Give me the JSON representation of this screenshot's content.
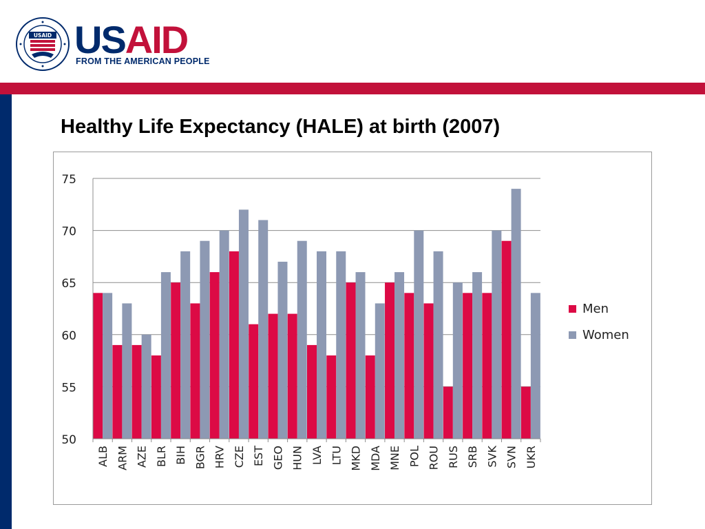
{
  "header": {
    "logo_text_us": "US",
    "logo_text_aid": "AID",
    "tagline": "FROM THE AMERICAN PEOPLE",
    "seal_label": "USAID",
    "colors": {
      "navy": "#002a6c",
      "red": "#c2113a"
    }
  },
  "slide": {
    "title": "Healthy Life Expectancy (HALE) at birth (2007)"
  },
  "chart_data": {
    "type": "bar",
    "title": "",
    "xlabel": "",
    "ylabel": "",
    "ylim": [
      50,
      75
    ],
    "yticks": [
      50,
      55,
      60,
      65,
      70,
      75
    ],
    "grid": true,
    "legend_position": "right",
    "categories": [
      "ALB",
      "ARM",
      "AZE",
      "BLR",
      "BIH",
      "BGR",
      "HRV",
      "CZE",
      "EST",
      "GEO",
      "HUN",
      "LVA",
      "LTU",
      "MKD",
      "MDA",
      "MNE",
      "POL",
      "ROU",
      "RUS",
      "SRB",
      "SVK",
      "SVN",
      "UKR"
    ],
    "series": [
      {
        "name": "Men",
        "color": "#dc0a45",
        "values": [
          64,
          59,
          59,
          58,
          65,
          63,
          66,
          68,
          61,
          62,
          62,
          59,
          58,
          65,
          58,
          65,
          64,
          63,
          55,
          64,
          64,
          69,
          55
        ]
      },
      {
        "name": "Women",
        "color": "#8d99b3",
        "values": [
          64,
          63,
          60,
          66,
          68,
          69,
          70,
          72,
          71,
          67,
          69,
          68,
          68,
          66,
          63,
          66,
          70,
          68,
          65,
          66,
          70,
          74,
          64
        ]
      }
    ]
  }
}
